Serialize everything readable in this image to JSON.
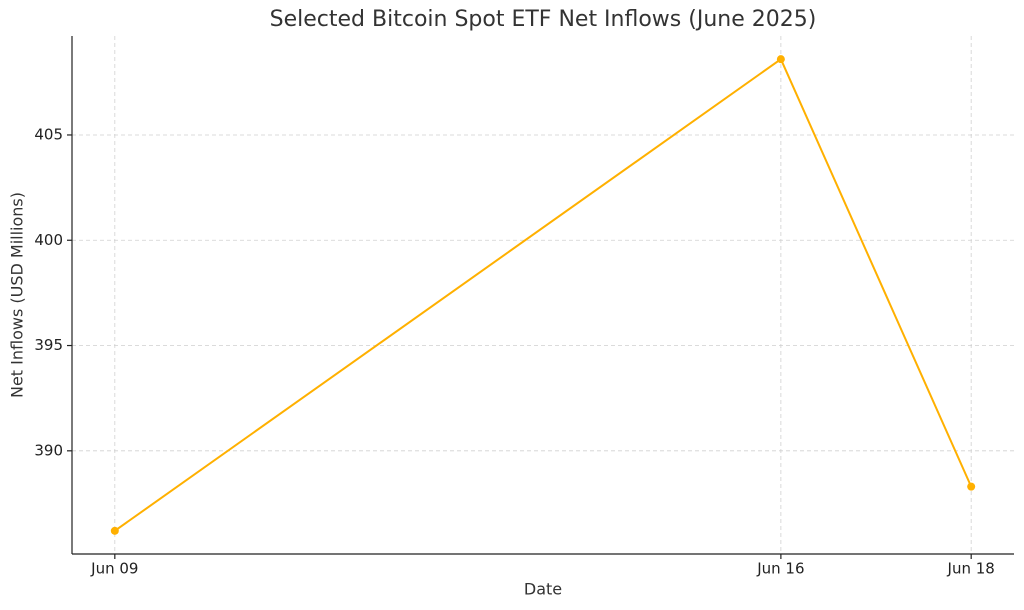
{
  "chart_data": {
    "type": "line",
    "title": "Selected Bitcoin Spot ETF Net Inflows (June 2025)",
    "x_label": "Date",
    "y_label": "Net Inflows (USD Millions)",
    "x": [
      9,
      16,
      18
    ],
    "series": [
      {
        "name": "Net Inflows",
        "color": "#ffb000",
        "values": [
          386.2,
          408.6,
          388.3
        ]
      }
    ],
    "xlim": [
      8.55,
      18.45
    ],
    "xticks": [
      {
        "value": 9,
        "label": "Jun 09"
      },
      {
        "value": 16,
        "label": "Jun 16"
      },
      {
        "value": 18,
        "label": "Jun 18"
      }
    ],
    "ylim": [
      385.1,
      409.7
    ],
    "yticks": [
      390,
      395,
      400,
      405
    ],
    "grid": true
  }
}
